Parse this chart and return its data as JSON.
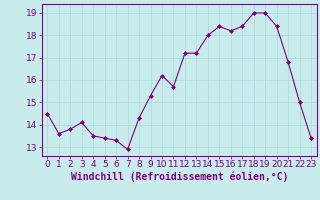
{
  "x": [
    0,
    1,
    2,
    3,
    4,
    5,
    6,
    7,
    8,
    9,
    10,
    11,
    12,
    13,
    14,
    15,
    16,
    17,
    18,
    19,
    20,
    21,
    22,
    23
  ],
  "y": [
    14.5,
    13.6,
    13.8,
    14.1,
    13.5,
    13.4,
    13.3,
    12.9,
    14.3,
    15.3,
    16.2,
    15.7,
    17.2,
    17.2,
    18.0,
    18.4,
    18.2,
    18.4,
    19.0,
    19.0,
    18.4,
    16.8,
    15.0,
    13.4
  ],
  "line_color": "#800080",
  "marker_color": "#800080",
  "bg_color": "#c8ecec",
  "grid_color": "#a8d8d8",
  "axis_color": "#800080",
  "xlabel": "Windchill (Refroidissement éolien,°C)",
  "ylim": [
    12.6,
    19.4
  ],
  "xlim": [
    -0.5,
    23.5
  ],
  "yticks": [
    13,
    14,
    15,
    16,
    17,
    18,
    19
  ],
  "xticks": [
    0,
    1,
    2,
    3,
    4,
    5,
    6,
    7,
    8,
    9,
    10,
    11,
    12,
    13,
    14,
    15,
    16,
    17,
    18,
    19,
    20,
    21,
    22,
    23
  ],
  "font_color": "#800080",
  "tick_font_size": 6.5,
  "label_font_size": 7.0
}
